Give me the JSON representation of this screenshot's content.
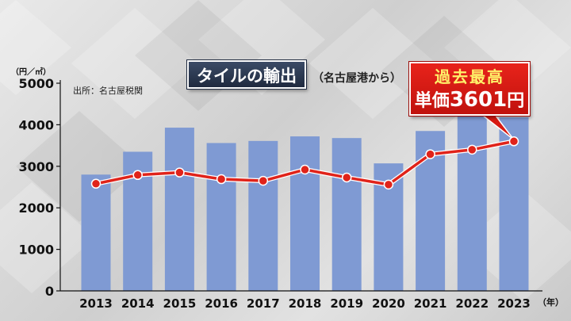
{
  "title": "タイルの輸出",
  "subtitle": "（名古屋港から）",
  "source": "出所：名古屋税関",
  "y_unit": "（円／㎡）",
  "x_unit": "（年）",
  "callout": {
    "line1": "過去最高",
    "line2_prefix": "単価",
    "line2_value": "3601",
    "line2_suffix": "円"
  },
  "colors": {
    "bar": "#7f9ad3",
    "line": "#e0231a",
    "marker_fill": "#ffffff",
    "callout": "#d81a12",
    "title_box": "#2a3650"
  },
  "chart_data": {
    "type": "bar",
    "categories": [
      "2013",
      "2014",
      "2015",
      "2016",
      "2017",
      "2018",
      "2019",
      "2020",
      "2021",
      "2022",
      "2023"
    ],
    "series": [
      {
        "type": "bar",
        "values": [
          2800,
          3350,
          3930,
          3560,
          3610,
          3720,
          3680,
          3070,
          3850,
          4200,
          4180
        ]
      },
      {
        "type": "line",
        "values": [
          2580,
          2790,
          2850,
          2690,
          2650,
          2920,
          2730,
          2560,
          3290,
          3400,
          3601
        ]
      }
    ],
    "ylim": [
      0,
      5000
    ],
    "yticks": [
      0,
      1000,
      2000,
      3000,
      4000,
      5000
    ],
    "grid": false,
    "legend": "none"
  }
}
